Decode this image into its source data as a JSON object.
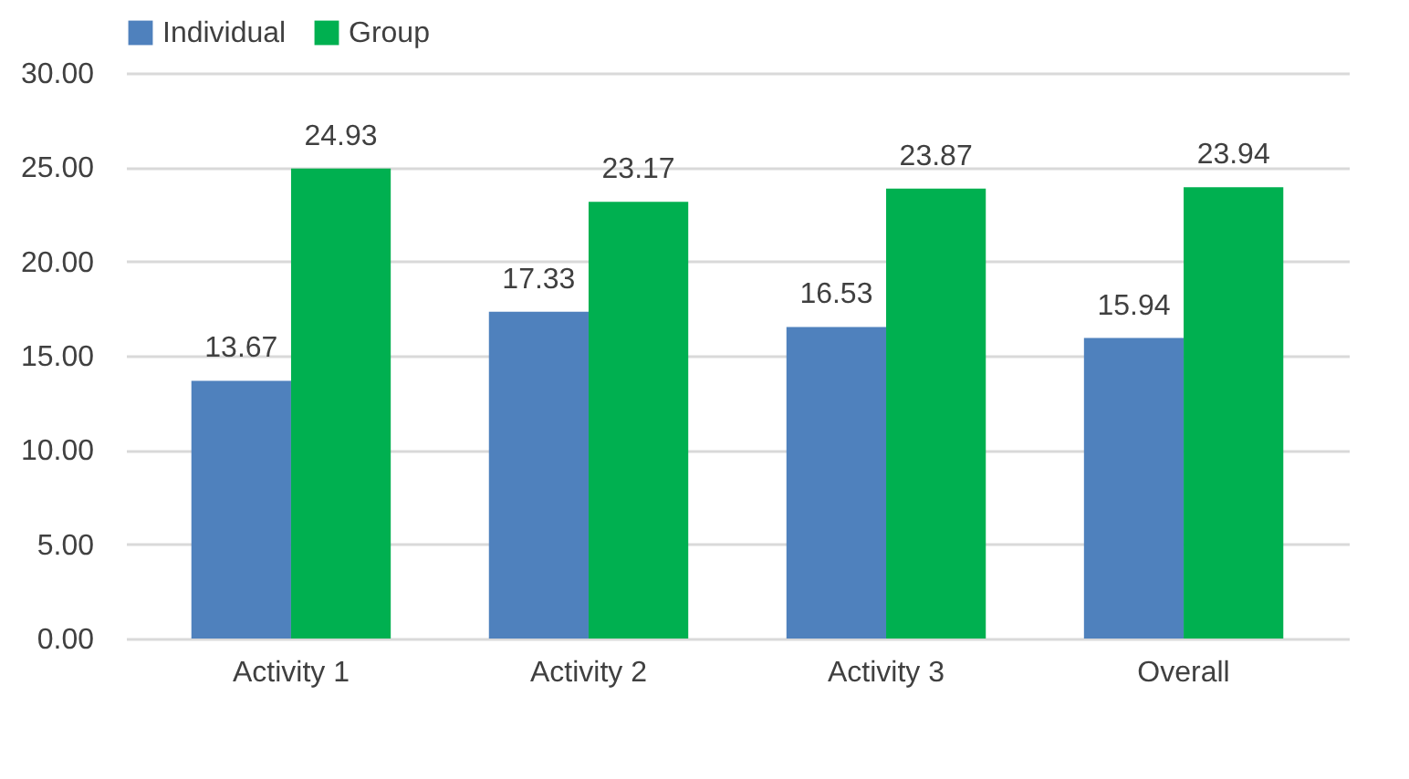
{
  "chart_data": {
    "type": "bar",
    "categories": [
      "Activity 1",
      "Activity 2",
      "Activity 3",
      "Overall"
    ],
    "series": [
      {
        "name": "Individual",
        "color": "#4f81bd",
        "values": [
          13.67,
          17.33,
          16.53,
          15.94
        ]
      },
      {
        "name": "Group",
        "color": "#00b050",
        "values": [
          24.93,
          23.17,
          23.87,
          23.94
        ]
      }
    ],
    "ylim": [
      0,
      30
    ],
    "yticks": [
      {
        "value": 0,
        "label": "0.00"
      },
      {
        "value": 5,
        "label": "5.00"
      },
      {
        "value": 10,
        "label": "10.00"
      },
      {
        "value": 15,
        "label": "15.00"
      },
      {
        "value": 20,
        "label": "20.00"
      },
      {
        "value": 25,
        "label": "25.00"
      },
      {
        "value": 30,
        "label": "30.00"
      }
    ],
    "grid": "y",
    "legend": "top",
    "data_labels": true
  }
}
